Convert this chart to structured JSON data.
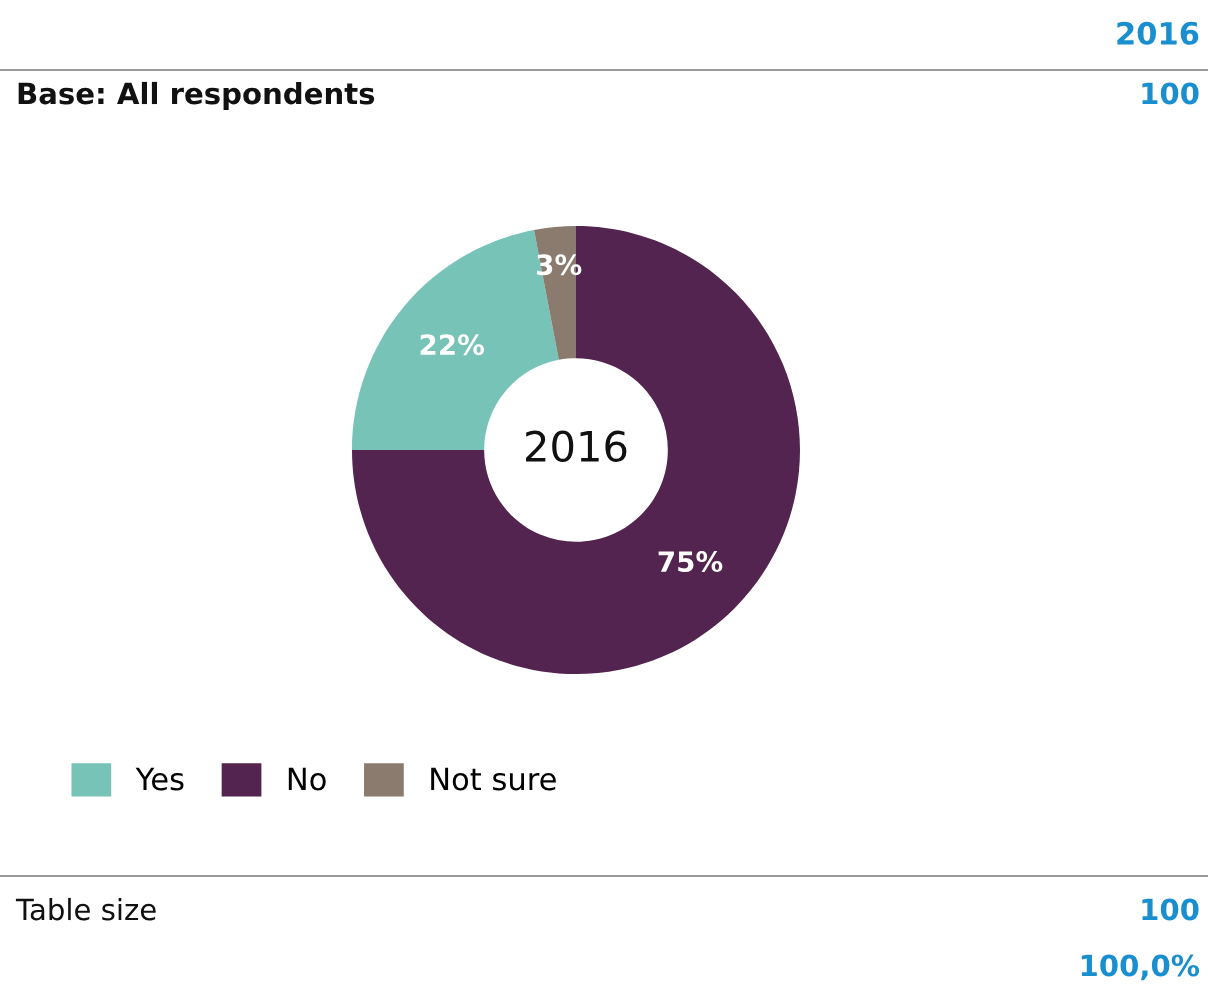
{
  "chart_data": {
    "type": "donut",
    "title": "2016",
    "subtitle": "2016",
    "categories": [
      "Yes",
      "No",
      "Not sure"
    ],
    "values": [
      22,
      75,
      3
    ],
    "colors": [
      "#77c3b7",
      "#53244f",
      "#8b7b6e"
    ],
    "value_labels": [
      "22%",
      "75%",
      "3%"
    ],
    "legend": "bottom left",
    "annotations": [
      "Base: All respondents",
      "100",
      "Table size",
      "100",
      "100,0%"
    ]
  }
}
